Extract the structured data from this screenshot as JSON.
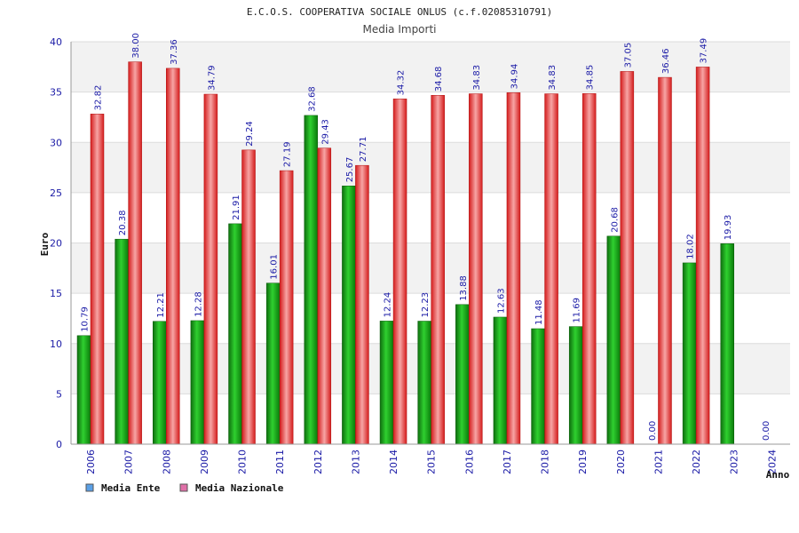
{
  "chart_data": {
    "type": "bar",
    "title": "E.C.O.S. COOPERATIVA SOCIALE ONLUS (c.f.02085310791)",
    "subtitle": "Media Importi",
    "xlabel": "Anno",
    "ylabel": "Euro",
    "ylim": [
      0,
      40
    ],
    "yticks": [
      0,
      5,
      10,
      15,
      20,
      25,
      30,
      35,
      40
    ],
    "grid": true,
    "legend_position": "bottom-left",
    "categories": [
      "2006",
      "2007",
      "2008",
      "2009",
      "2010",
      "2011",
      "2012",
      "2013",
      "2014",
      "2015",
      "2016",
      "2017",
      "2018",
      "2019",
      "2020",
      "2021",
      "2022",
      "2023",
      "2024"
    ],
    "series": [
      {
        "name": "Media Ente",
        "color": "#22aa22",
        "legend_color": "#5aa0e6",
        "values": [
          10.79,
          20.38,
          12.21,
          12.28,
          21.91,
          16.01,
          32.68,
          25.67,
          12.24,
          12.23,
          13.88,
          12.63,
          11.48,
          11.69,
          20.68,
          0.0,
          18.02,
          19.93,
          0.0
        ],
        "labels": [
          "10.79",
          "20.38",
          "12.21",
          "12.28",
          "21.91",
          "16.01",
          "32.68",
          "25.67",
          "12.24",
          "12.23",
          "13.88",
          "12.63",
          "11.48",
          "11.69",
          "20.68",
          "0.00",
          "18.02",
          "19.93",
          "0.00"
        ]
      },
      {
        "name": "Media Nazionale",
        "color": "#e83030",
        "legend_color": "#e070a8",
        "values": [
          32.82,
          38.0,
          37.36,
          34.79,
          29.24,
          27.19,
          29.43,
          27.71,
          34.32,
          34.68,
          34.83,
          34.94,
          34.83,
          34.85,
          37.05,
          36.46,
          37.49,
          null,
          null
        ],
        "labels": [
          "32.82",
          "38.00",
          "37.36",
          "34.79",
          "29.24",
          "27.19",
          "29.43",
          "27.71",
          "34.32",
          "34.68",
          "34.83",
          "34.94",
          "34.83",
          "34.85",
          "37.05",
          "36.46",
          "37.49",
          "",
          ""
        ]
      }
    ]
  }
}
